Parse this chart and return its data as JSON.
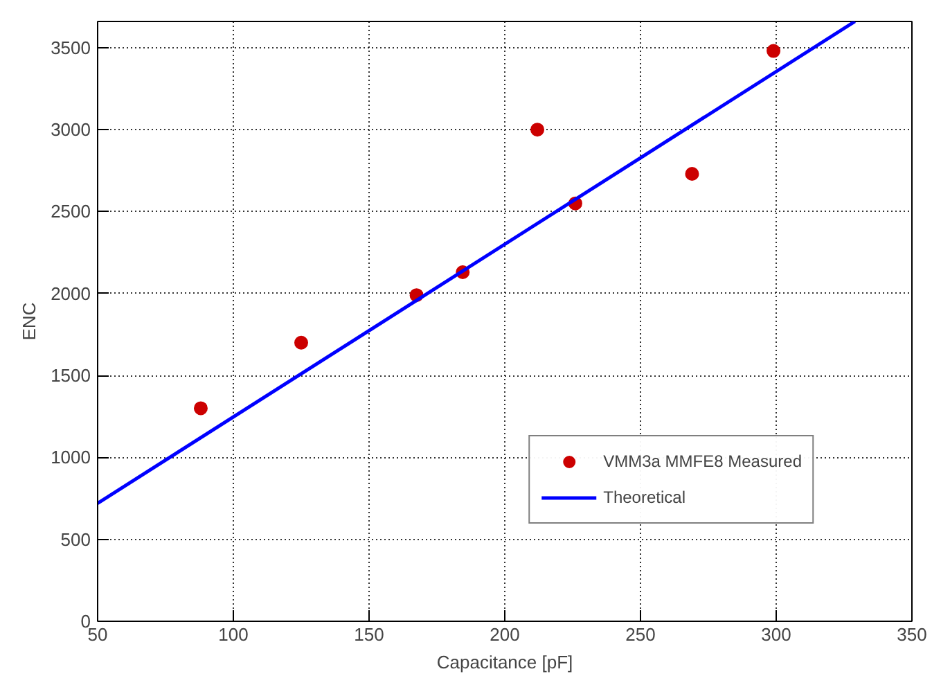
{
  "chart_data": {
    "type": "scatter",
    "xlabel": "Capacitance [pF]",
    "ylabel": "ENC",
    "xlim": [
      50,
      350
    ],
    "ylim": [
      0,
      3660
    ],
    "xticks": [
      50,
      100,
      150,
      200,
      250,
      300,
      350
    ],
    "yticks": [
      0,
      500,
      1000,
      1500,
      2000,
      2500,
      3000,
      3500
    ],
    "grid": true,
    "legend": "bottom right",
    "series": [
      {
        "name": "VMM3a MMFE8 Measured",
        "color": "#cc0000",
        "marker": "circle",
        "x": [
          88,
          125,
          167.5,
          184.5,
          212,
          226,
          269,
          299
        ],
        "values": [
          1300,
          1700,
          1990,
          2130,
          3000,
          2550,
          2730,
          3480
        ]
      },
      {
        "name": "Theoretical",
        "type": "line",
        "color": "#0000ff",
        "line_style": "solid",
        "x": [
          50,
          329
        ],
        "values": [
          720,
          3660
        ]
      }
    ]
  }
}
